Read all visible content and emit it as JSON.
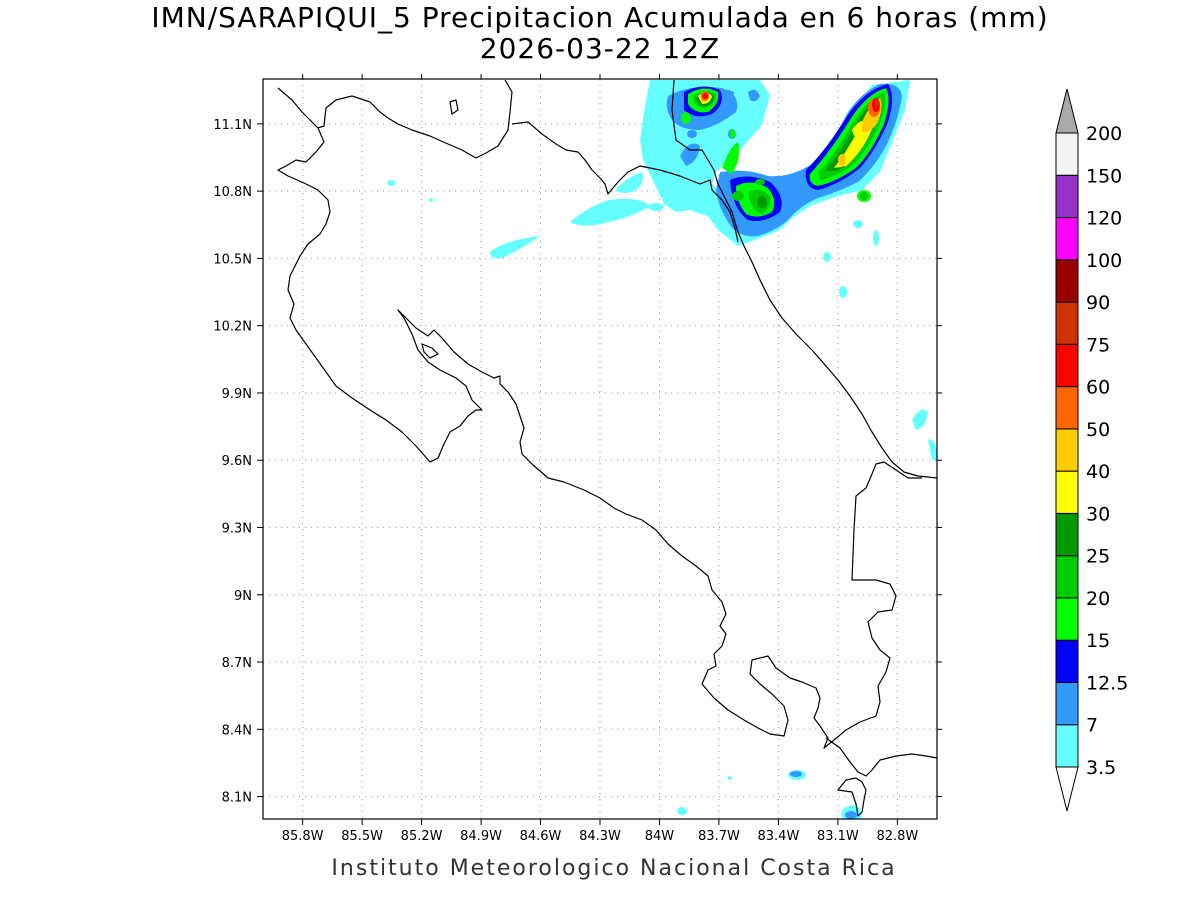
{
  "title": {
    "line1": "IMN/SARAPIQUI_5 Precipitacion Acumulada en 6 horas (mm)",
    "line2": "2026-03-22 12Z"
  },
  "footer": "Instituto Meteorologico Nacional Costa Rica",
  "map": {
    "lon_range": [
      -86.0,
      -82.6
    ],
    "lat_range": [
      8.0,
      11.3
    ],
    "lon_ticks": [
      {
        "value": -85.8,
        "label": "85.8W"
      },
      {
        "value": -85.5,
        "label": "85.5W"
      },
      {
        "value": -85.2,
        "label": "85.2W"
      },
      {
        "value": -84.9,
        "label": "84.9W"
      },
      {
        "value": -84.6,
        "label": "84.6W"
      },
      {
        "value": -84.3,
        "label": "84.3W"
      },
      {
        "value": -84.0,
        "label": "84W"
      },
      {
        "value": -83.7,
        "label": "83.7W"
      },
      {
        "value": -83.4,
        "label": "83.4W"
      },
      {
        "value": -83.1,
        "label": "83.1W"
      },
      {
        "value": -82.8,
        "label": "82.8W"
      }
    ],
    "lat_ticks": [
      {
        "value": 8.1,
        "label": "8.1N"
      },
      {
        "value": 8.4,
        "label": "8.4N"
      },
      {
        "value": 8.7,
        "label": "8.7N"
      },
      {
        "value": 9.0,
        "label": "9N"
      },
      {
        "value": 9.3,
        "label": "9.3N"
      },
      {
        "value": 9.6,
        "label": "9.6N"
      },
      {
        "value": 9.9,
        "label": "9.9N"
      },
      {
        "value": 10.2,
        "label": "10.2N"
      },
      {
        "value": 10.5,
        "label": "10.5N"
      },
      {
        "value": 10.8,
        "label": "10.8N"
      },
      {
        "value": 11.1,
        "label": "11.1N"
      }
    ],
    "grid": true
  },
  "colorbar": {
    "labels": [
      "3.5",
      "7",
      "12.5",
      "15",
      "20",
      "25",
      "30",
      "40",
      "50",
      "60",
      "75",
      "90",
      "100",
      "120",
      "150",
      "200"
    ],
    "colors": [
      "#66ffff",
      "#3399ff",
      "#0000ff",
      "#00ff00",
      "#00cc00",
      "#009900",
      "#ffff00",
      "#ffcc00",
      "#ff6600",
      "#ff0000",
      "#cc3300",
      "#990000",
      "#ff00ff",
      "#9933cc",
      "#f2f2f2"
    ],
    "under_color": "#ffffff",
    "over_color": "#aaaaaa"
  }
}
